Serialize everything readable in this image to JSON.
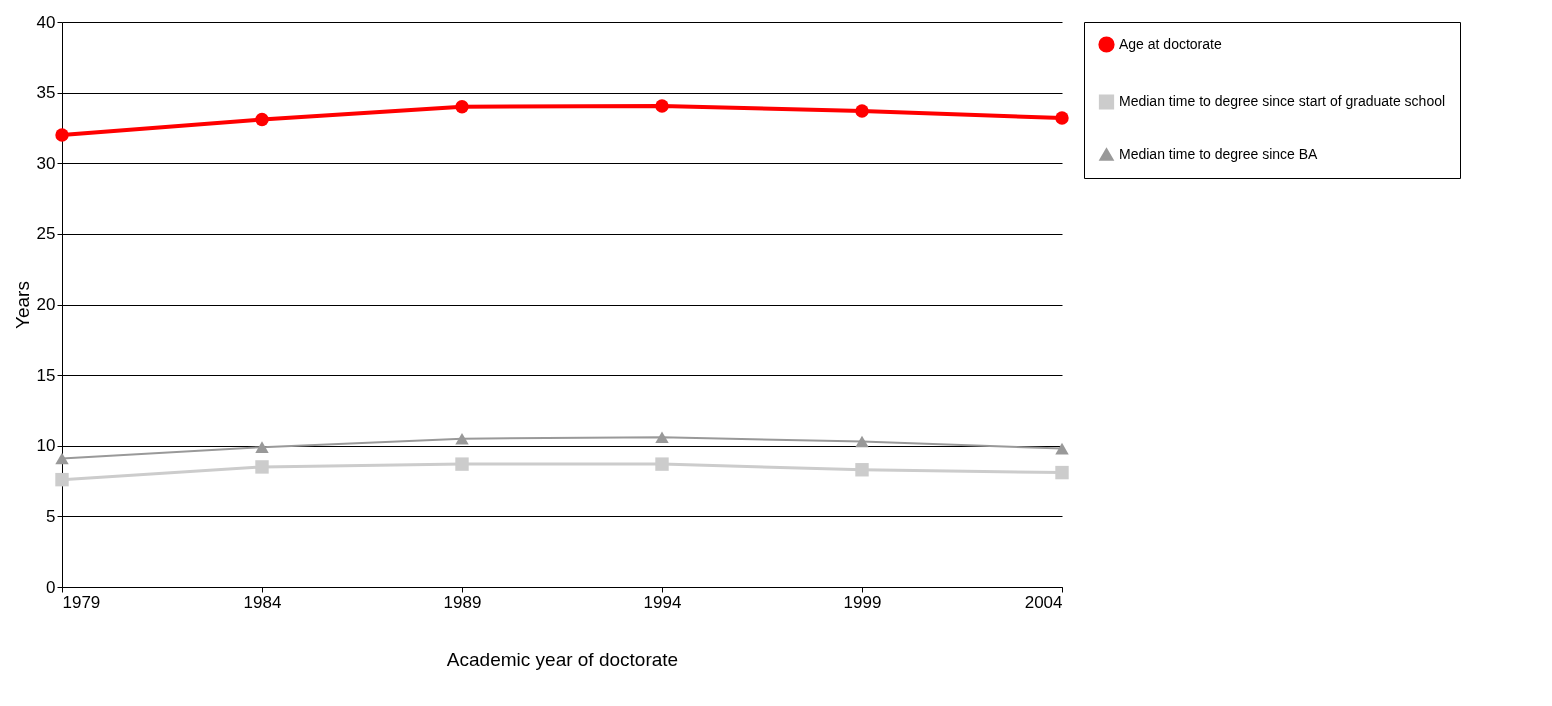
{
  "chart_data": {
    "type": "line",
    "xlabel": "Academic year of doctorate",
    "ylabel": "Years",
    "x": [
      1979,
      1984,
      1989,
      1994,
      1999,
      2004
    ],
    "xlim": [
      1979,
      2004
    ],
    "xticks": [
      1979,
      1984,
      1989,
      1994,
      1999,
      2004
    ],
    "ylim": [
      0,
      40
    ],
    "yticks": [
      0,
      5,
      10,
      15,
      20,
      25,
      30,
      35,
      40
    ],
    "grid": "y",
    "legend": "right",
    "series": [
      {
        "name": "Age at doctorate",
        "color": "#ff0000",
        "marker": "circle",
        "values": [
          32.0,
          33.1,
          34.0,
          34.05,
          33.7,
          33.2
        ]
      },
      {
        "name": "Median time to degree since start of graduate school",
        "color": "#cccccc",
        "marker": "square",
        "values": [
          7.6,
          8.5,
          8.7,
          8.7,
          8.3,
          8.1
        ]
      },
      {
        "name": "Median time to degree since BA",
        "color": "#999999",
        "marker": "triangle",
        "values": [
          9.1,
          9.9,
          10.5,
          10.6,
          10.3,
          9.8
        ]
      }
    ]
  }
}
